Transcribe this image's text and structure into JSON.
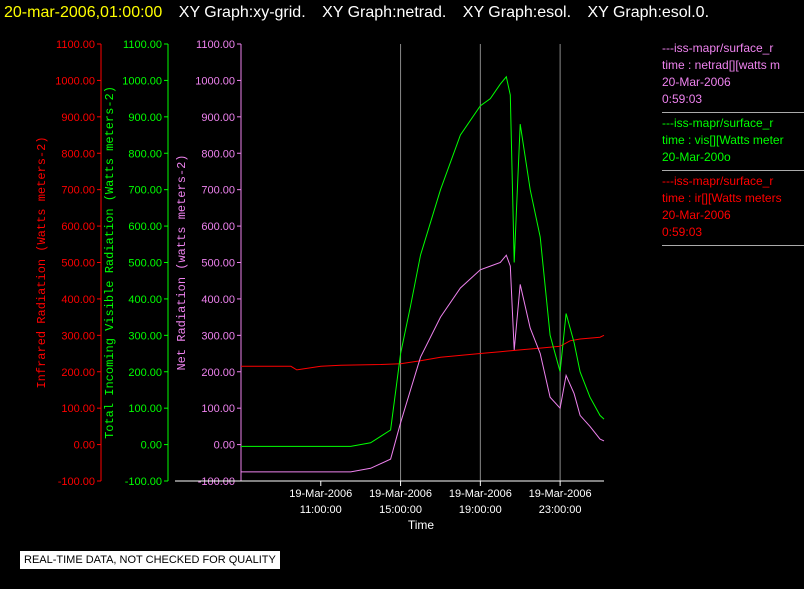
{
  "header": {
    "date": "20-mar-2006,01:00:00",
    "graph_titles": [
      "XY Graph:xy-grid.",
      "XY Graph:netrad.",
      "XY Graph:esol.",
      "XY Graph:esol.0."
    ]
  },
  "chart_data": {
    "type": "line",
    "xlabel": "Time",
    "x_ticks": [
      {
        "date": "19-Mar-2006",
        "time": "11:00:00"
      },
      {
        "date": "19-Mar-2006",
        "time": "15:00:00"
      },
      {
        "date": "19-Mar-2006",
        "time": "19:00:00"
      },
      {
        "date": "19-Mar-2006",
        "time": "23:00:00"
      }
    ],
    "x_tick_hours": [
      11,
      15,
      19,
      23
    ],
    "x_range_hours": [
      7.0,
      25.2
    ],
    "y_axes": [
      {
        "label": "Infrared Radiation (Watts meters-2)",
        "color": "#ff0000",
        "ticks": [
          "-100.00",
          "0.00",
          "100.00",
          "200.00",
          "300.00",
          "400.00",
          "500.00",
          "600.00",
          "700.00",
          "800.00",
          "900.00",
          "1000.00",
          "1100.00"
        ]
      },
      {
        "label": "Total Incoming Visible Radiation (Watts meters-2)",
        "color": "#00ff00",
        "ticks": [
          "-100.00",
          "0.00",
          "100.00",
          "200.00",
          "300.00",
          "400.00",
          "500.00",
          "600.00",
          "700.00",
          "800.00",
          "900.00",
          "1000.00",
          "1100.00"
        ]
      },
      {
        "label": "Net Radiation (watts meters-2)",
        "color": "#ee82ee",
        "ticks": [
          "-100.00",
          "0.00",
          "100.00",
          "200.00",
          "300.00",
          "400.00",
          "500.00",
          "600.00",
          "700.00",
          "800.00",
          "900.00",
          "1000.00",
          "1100.00"
        ]
      }
    ],
    "ylim": [
      -100,
      1100
    ],
    "grid": "vertical lines at x ticks",
    "series": [
      {
        "name": "ir",
        "color": "#ff0000",
        "x": [
          7.0,
          9.5,
          9.8,
          11.0,
          12.0,
          14.0,
          15.0,
          16.0,
          17.0,
          18.0,
          19.0,
          20.0,
          21.0,
          22.0,
          23.0,
          23.5,
          24.0,
          25.0,
          25.2
        ],
        "y": [
          215,
          215,
          205,
          215,
          218,
          220,
          222,
          230,
          240,
          245,
          250,
          255,
          260,
          265,
          270,
          285,
          290,
          295,
          300
        ]
      },
      {
        "name": "vis",
        "color": "#00ff00",
        "x": [
          7.0,
          12.5,
          13.5,
          14.5,
          15.0,
          15.5,
          16.0,
          17.0,
          18.0,
          19.0,
          19.5,
          20.0,
          20.3,
          20.5,
          20.7,
          21.0,
          21.5,
          22.0,
          22.5,
          23.0,
          23.3,
          23.7,
          24.0,
          24.5,
          25.0,
          25.2
        ],
        "y": [
          -5,
          -5,
          5,
          40,
          250,
          380,
          520,
          700,
          850,
          930,
          950,
          990,
          1010,
          960,
          500,
          880,
          700,
          570,
          300,
          200,
          360,
          280,
          200,
          130,
          80,
          70
        ]
      },
      {
        "name": "netrad",
        "color": "#ee82ee",
        "x": [
          7.0,
          12.5,
          13.5,
          14.5,
          15.0,
          15.5,
          16.0,
          17.0,
          18.0,
          19.0,
          19.5,
          20.0,
          20.3,
          20.5,
          20.7,
          21.0,
          21.5,
          22.0,
          22.5,
          23.0,
          23.3,
          23.7,
          24.0,
          24.5,
          25.0,
          25.2
        ],
        "y": [
          -75,
          -75,
          -65,
          -40,
          60,
          150,
          240,
          350,
          430,
          480,
          490,
          500,
          520,
          490,
          260,
          440,
          320,
          250,
          130,
          100,
          190,
          140,
          80,
          50,
          15,
          10
        ]
      }
    ]
  },
  "legend": [
    {
      "lines": [
        "---iss-mapr/surface_r",
        "time : netrad[][watts m",
        "20-Mar-2006",
        "0:59:03"
      ],
      "color": "#ee82ee"
    },
    {
      "lines": [
        "---iss-mapr/surface_r",
        "time : vis[][Watts meter",
        "20-Mar-200o"
      ],
      "color": "#00ff00"
    },
    {
      "lines": [
        "---iss-mapr/surface_r",
        "time : ir[][Watts meters",
        "20-Mar-2006",
        "0:59:03"
      ],
      "color": "#ff0000"
    }
  ],
  "quality_note": "REAL-TIME DATA, NOT CHECKED FOR QUALITY"
}
